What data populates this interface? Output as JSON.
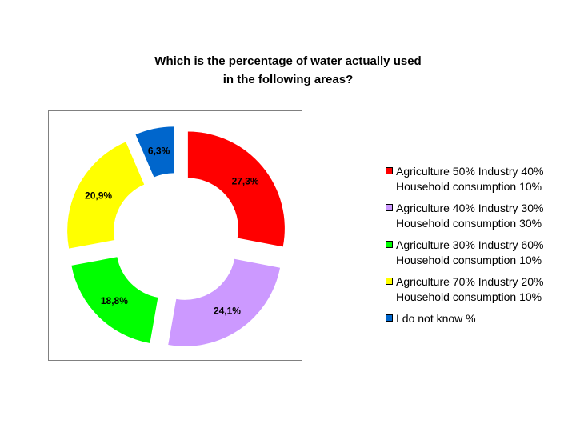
{
  "chart_data": {
    "type": "pie",
    "variant": "donut-exploded",
    "title_lines": [
      "Which is the percentage of water actually used",
      "in the following areas?"
    ],
    "legend_position": "right",
    "series": [
      {
        "name_lines": [
          "Agriculture 50% Industry 40%",
          "Household consumption 10%"
        ],
        "value": 27.3,
        "label": "27,3%",
        "color": "#ff0000"
      },
      {
        "name_lines": [
          "Agriculture 40% Industry 30%",
          "Household consumption 30%"
        ],
        "value": 24.1,
        "label": "24,1%",
        "color": "#cc99ff"
      },
      {
        "name_lines": [
          "Agriculture 30% Industry 60%",
          "Household consumption 10%"
        ],
        "value": 18.8,
        "label": "18,8%",
        "color": "#00ff00"
      },
      {
        "name_lines": [
          "Agriculture 70% Industry 20%",
          "Household consumption 10%"
        ],
        "value": 20.9,
        "label": "20,9%",
        "color": "#ffff00"
      },
      {
        "name_lines": [
          "I do not know %"
        ],
        "value": 6.3,
        "label": "6,3%",
        "color": "#0066cc"
      }
    ]
  }
}
